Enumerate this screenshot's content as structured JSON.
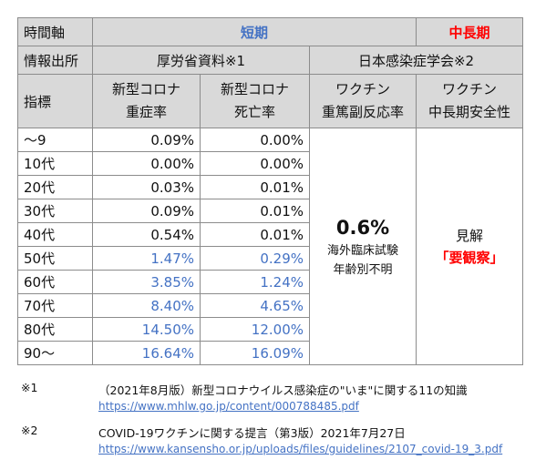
{
  "table": {
    "row1": {
      "label": "時間軸",
      "short": "短期",
      "long": "中長期"
    },
    "row2": {
      "label": "情報出所",
      "source1": "厚労省資料※1",
      "source2": "日本感染症学会※2"
    },
    "row3": {
      "label": "指標",
      "col1": [
        "新型コロナ",
        "重症率"
      ],
      "col2": [
        "新型コロナ",
        "死亡率"
      ],
      "col3": [
        "ワクチン",
        "重篤副反応率"
      ],
      "col4": [
        "ワクチン",
        "中長期安全性"
      ]
    },
    "rows": [
      {
        "age": "〜9",
        "severe": "0.09%",
        "death": "0.00%",
        "highlight": false
      },
      {
        "age": "10代",
        "severe": "0.00%",
        "death": "0.00%",
        "highlight": false
      },
      {
        "age": "20代",
        "severe": "0.03%",
        "death": "0.01%",
        "highlight": false
      },
      {
        "age": "30代",
        "severe": "0.09%",
        "death": "0.01%",
        "highlight": false
      },
      {
        "age": "40代",
        "severe": "0.54%",
        "death": "0.01%",
        "highlight": false
      },
      {
        "age": "50代",
        "severe": "1.47%",
        "death": "0.29%",
        "highlight": true
      },
      {
        "age": "60代",
        "severe": "3.85%",
        "death": "1.24%",
        "highlight": true
      },
      {
        "age": "70代",
        "severe": "8.40%",
        "death": "4.65%",
        "highlight": true
      },
      {
        "age": "80代",
        "severe": "14.50%",
        "death": "12.00%",
        "highlight": true
      },
      {
        "age": "90〜",
        "severe": "16.64%",
        "death": "16.09%",
        "highlight": true
      }
    ],
    "vaccine": {
      "rate": "0.6%",
      "line1": "海外臨床試験",
      "line2": "年齢別不明"
    },
    "safety": {
      "line1": "見解",
      "line2": "「要観察」"
    }
  },
  "notes": [
    {
      "mark": "※1",
      "text": "（2021年8月版）新型コロナウイルス感染症の\"いま\"に関する11の知識",
      "url": "https://www.mhlw.go.jp/content/000788485.pdf"
    },
    {
      "mark": "※2",
      "text": "COVID-19ワクチンに関する提言（第3版）2021年7月27日",
      "url": "https://www.kansensho.or.jp/uploads/files/guidelines/2107_covid-19_3.pdf"
    }
  ],
  "colors": {
    "header_bg": "#d9d9d9",
    "accent_blue": "#4472c4",
    "accent_red": "#ff0000",
    "border": "#8c8c8c"
  }
}
